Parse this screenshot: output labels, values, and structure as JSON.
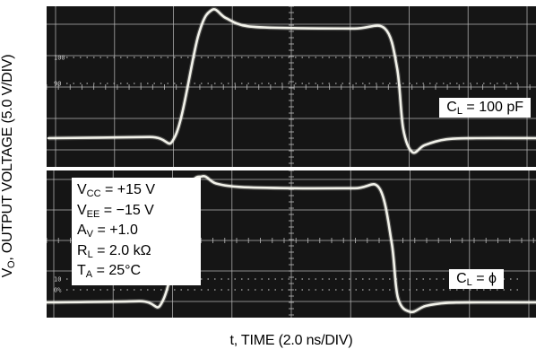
{
  "chart_data": [
    {
      "type": "line",
      "title": "",
      "xlabel": "t, TIME (2.0 ns/DIV)",
      "ylabel": "V_O, OUTPUT VOLTAGE (5.0 V/DIV)",
      "grid": true,
      "annotation": "C_L = 100 pF",
      "y_markers": [
        "100",
        "90"
      ],
      "series": [
        {
          "x": [
            0,
            3.3,
            4.15,
            4.9,
            5.35,
            5.8,
            6.5,
            8.0,
            10.0,
            11.0,
            11.4,
            11.6,
            11.9,
            12.3,
            13.0,
            14.0,
            16.0
          ],
          "y": [
            0,
            0.05,
            0.1,
            4.4,
            5.5,
            5.15,
            4.8,
            4.72,
            4.7,
            4.7,
            3.0,
            0.4,
            -0.6,
            -0.3,
            -0.05,
            0,
            0
          ]
        }
      ]
    },
    {
      "type": "line",
      "title": "",
      "xlabel": "t, TIME (2.0 ns/DIV)",
      "ylabel": "V_O, OUTPUT VOLTAGE (5.0 V/DIV)",
      "grid": true,
      "annotation": "C_L = ϕ",
      "y_markers": [
        "10",
        "0%"
      ],
      "series": [
        {
          "x": [
            0,
            3.0,
            3.8,
            4.6,
            5.05,
            5.5,
            6.3,
            8.0,
            10.0,
            10.8,
            11.2,
            11.4,
            11.8,
            12.3,
            13.0,
            14.0,
            16.0
          ],
          "y": [
            0,
            0.05,
            0.15,
            4.6,
            5.3,
            5.0,
            4.85,
            4.8,
            4.8,
            4.8,
            2.5,
            0.2,
            -0.4,
            -0.15,
            -0.02,
            0,
            0
          ]
        }
      ]
    }
  ],
  "labels": {
    "ylabel_main": "V",
    "ylabel_sub": "O",
    "ylabel_rest": ", OUTPUT VOLTAGE (5.0 V/DIV)",
    "xlabel": "t, TIME (2.0 ns/DIV)",
    "cl_top_main": "C",
    "cl_top_sub": "L",
    "cl_top_rest": " = 100 pF",
    "cl_bottom_main": "C",
    "cl_bottom_sub": "L",
    "cl_bottom_rest": " = ϕ"
  },
  "params": [
    {
      "main": "V",
      "sub": "CC",
      "rest": " = +15 V"
    },
    {
      "main": "V",
      "sub": "EE",
      "rest": " = −15 V"
    },
    {
      "main": "A",
      "sub": "V",
      "rest": " = +1.0"
    },
    {
      "main": "R",
      "sub": "L",
      "rest": " = 2.0 kΩ"
    },
    {
      "main": "T",
      "sub": "A",
      "rest": " = 25°C"
    }
  ],
  "colors": {
    "background": "#151515",
    "grid": "#bdbdbd",
    "trace": "#f2f2ea"
  }
}
